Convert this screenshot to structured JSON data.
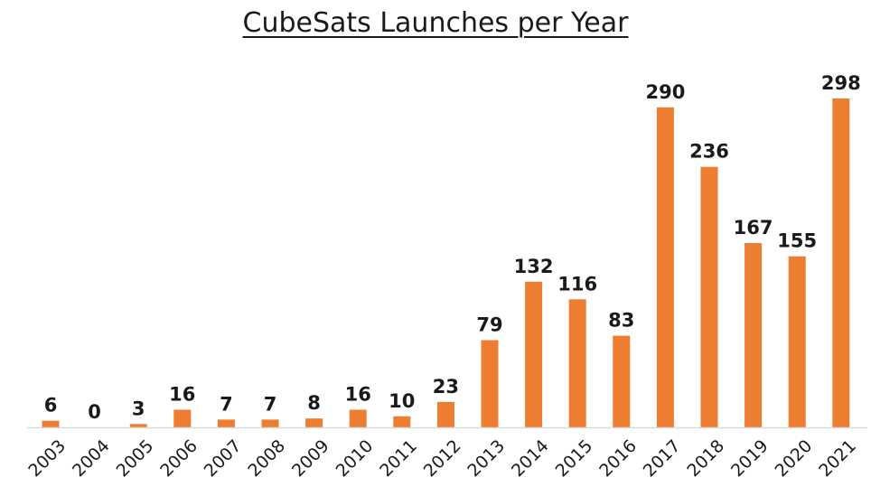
{
  "chart_data": {
    "type": "bar",
    "title": "CubeSats Launches per Year",
    "categories": [
      "2003",
      "2004",
      "2005",
      "2006",
      "2007",
      "2008",
      "2009",
      "2010",
      "2011",
      "2012",
      "2013",
      "2014",
      "2015",
      "2016",
      "2017",
      "2018",
      "2019",
      "2020",
      "2021"
    ],
    "values": [
      6,
      0,
      3,
      16,
      7,
      7,
      8,
      16,
      10,
      23,
      79,
      132,
      116,
      83,
      290,
      236,
      167,
      155,
      298
    ],
    "xlabel": "",
    "ylabel": "",
    "ylim": [
      0,
      298
    ],
    "grid": false,
    "legend": "none",
    "bar_color": "#ED7D31",
    "axis_color": "#d9d9d9"
  }
}
